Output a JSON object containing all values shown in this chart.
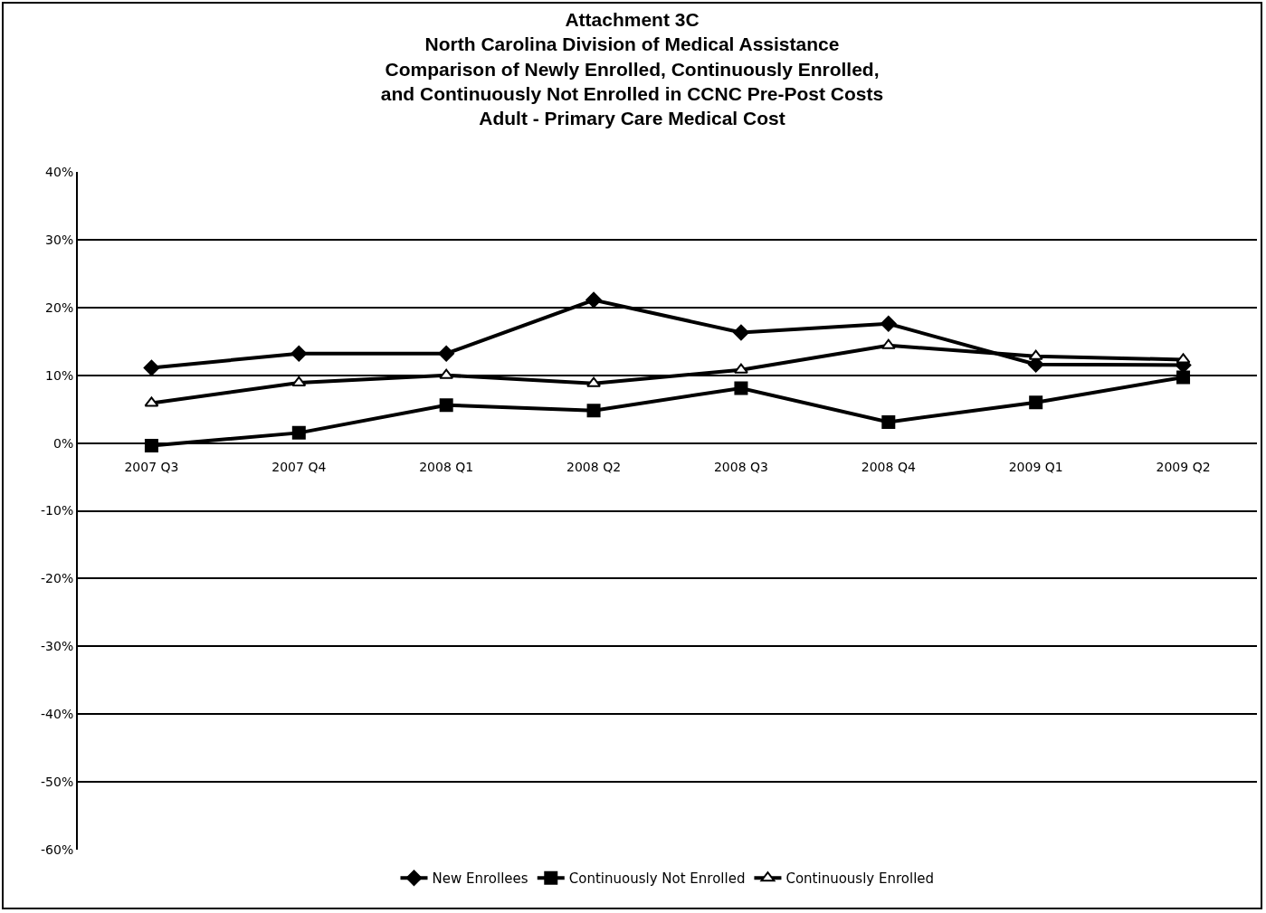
{
  "chart_data": {
    "type": "line",
    "title": "Attachment 3C\nNorth Carolina Division of Medical Assistance\nComparison of Newly Enrolled, Continuously Enrolled,\nand Continuously Not Enrolled in CCNC Pre-Post Costs\nAdult - Primary Care Medical Cost",
    "categories": [
      "2007 Q3",
      "2007 Q4",
      "2008 Q1",
      "2008 Q2",
      "2008 Q3",
      "2008 Q4",
      "2009 Q1",
      "2009 Q2"
    ],
    "series": [
      {
        "name": "New Enrollees",
        "color": "#000000",
        "marker": "diamond",
        "values": [
          11.1,
          13.2,
          13.2,
          21.1,
          16.3,
          17.6,
          11.6,
          11.5
        ]
      },
      {
        "name": "Continuously Not Enrolled",
        "color": "#000000",
        "marker": "square",
        "values": [
          -0.4,
          1.5,
          5.6,
          4.8,
          8.1,
          3.1,
          6.0,
          9.7
        ]
      },
      {
        "name": "Continuously Enrolled",
        "color": "#000000",
        "marker": "triangle",
        "values": [
          5.9,
          8.9,
          10.0,
          8.8,
          10.8,
          14.4,
          12.8,
          12.3
        ]
      }
    ],
    "ylim": [
      -60,
      40
    ],
    "yticks": [
      {
        "value": -60,
        "label": "-60%"
      },
      {
        "value": -50,
        "label": "-50%"
      },
      {
        "value": -40,
        "label": "-40%"
      },
      {
        "value": -30,
        "label": "-30%"
      },
      {
        "value": -20,
        "label": "-20%"
      },
      {
        "value": -10,
        "label": "-10%"
      },
      {
        "value": 0,
        "label": "0%"
      },
      {
        "value": 10,
        "label": "10%"
      },
      {
        "value": 20,
        "label": "20%"
      },
      {
        "value": 30,
        "label": "30%"
      },
      {
        "value": 40,
        "label": "40%"
      }
    ],
    "grid": "y",
    "legend": "bottom",
    "line_style": "solid"
  }
}
